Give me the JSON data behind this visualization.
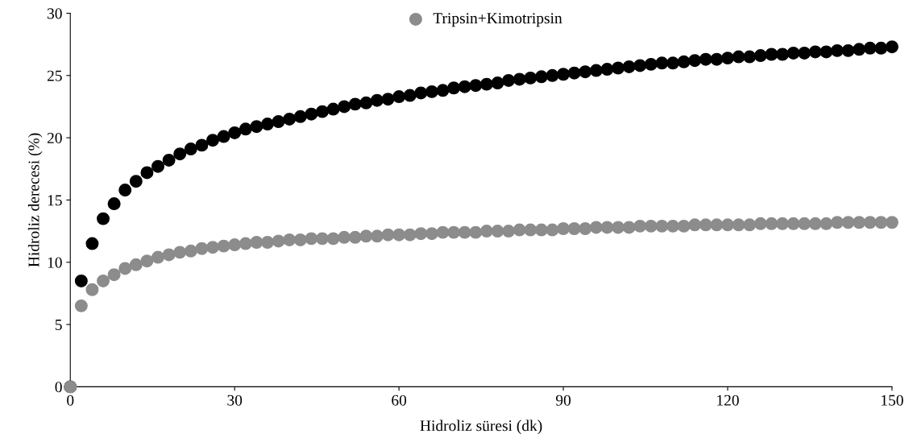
{
  "chart_data": {
    "type": "scatter",
    "xlabel": "Hidroliz süresi (dk)",
    "ylabel": "Hidroliz derecesi (%)",
    "x": [
      0,
      2,
      4,
      6,
      8,
      10,
      12,
      14,
      16,
      18,
      20,
      22,
      24,
      26,
      28,
      30,
      32,
      34,
      36,
      38,
      40,
      42,
      44,
      46,
      48,
      50,
      52,
      54,
      56,
      58,
      60,
      62,
      64,
      66,
      68,
      70,
      72,
      74,
      76,
      78,
      80,
      82,
      84,
      86,
      88,
      90,
      92,
      94,
      96,
      98,
      100,
      102,
      104,
      106,
      108,
      110,
      112,
      114,
      116,
      118,
      120,
      122,
      124,
      126,
      128,
      130,
      132,
      134,
      136,
      138,
      140,
      142,
      144,
      146,
      148,
      150
    ],
    "series": [
      {
        "color": "#000000",
        "values": [
          0,
          8.5,
          11.5,
          13.5,
          14.7,
          15.8,
          16.5,
          17.2,
          17.7,
          18.2,
          18.7,
          19.1,
          19.4,
          19.8,
          20.1,
          20.4,
          20.7,
          20.9,
          21.1,
          21.3,
          21.5,
          21.7,
          21.9,
          22.1,
          22.3,
          22.5,
          22.7,
          22.8,
          23.0,
          23.1,
          23.3,
          23.4,
          23.6,
          23.7,
          23.8,
          24.0,
          24.1,
          24.2,
          24.3,
          24.4,
          24.6,
          24.7,
          24.8,
          24.9,
          25.0,
          25.1,
          25.2,
          25.3,
          25.4,
          25.5,
          25.6,
          25.7,
          25.8,
          25.9,
          26.0,
          26.0,
          26.1,
          26.2,
          26.3,
          26.3,
          26.4,
          26.5,
          26.5,
          26.6,
          26.7,
          26.7,
          26.8,
          26.8,
          26.9,
          26.9,
          27.0,
          27.0,
          27.1,
          27.2,
          27.2,
          27.3
        ]
      },
      {
        "name": "Tripsin+Kimotripsin",
        "color": "#8c8c8c",
        "values": [
          0,
          6.5,
          7.8,
          8.5,
          9.0,
          9.5,
          9.8,
          10.1,
          10.4,
          10.6,
          10.8,
          10.9,
          11.1,
          11.2,
          11.3,
          11.4,
          11.5,
          11.6,
          11.6,
          11.7,
          11.8,
          11.8,
          11.9,
          11.9,
          11.9,
          12.0,
          12.0,
          12.1,
          12.1,
          12.2,
          12.2,
          12.2,
          12.3,
          12.3,
          12.4,
          12.4,
          12.4,
          12.4,
          12.5,
          12.5,
          12.5,
          12.6,
          12.6,
          12.6,
          12.6,
          12.7,
          12.7,
          12.7,
          12.8,
          12.8,
          12.8,
          12.8,
          12.9,
          12.9,
          12.9,
          12.9,
          12.9,
          13.0,
          13.0,
          13.0,
          13.0,
          13.0,
          13.0,
          13.1,
          13.1,
          13.1,
          13.1,
          13.1,
          13.1,
          13.1,
          13.2,
          13.2,
          13.2,
          13.2,
          13.2,
          13.2
        ]
      }
    ],
    "xlim": [
      0,
      150
    ],
    "xticks": [
      0,
      30,
      60,
      90,
      120,
      150
    ],
    "ylim": [
      0,
      30
    ],
    "yticks": [
      0,
      5,
      10,
      15,
      20,
      25,
      30
    ],
    "marker": "circle",
    "legend": "top",
    "grid": false
  }
}
